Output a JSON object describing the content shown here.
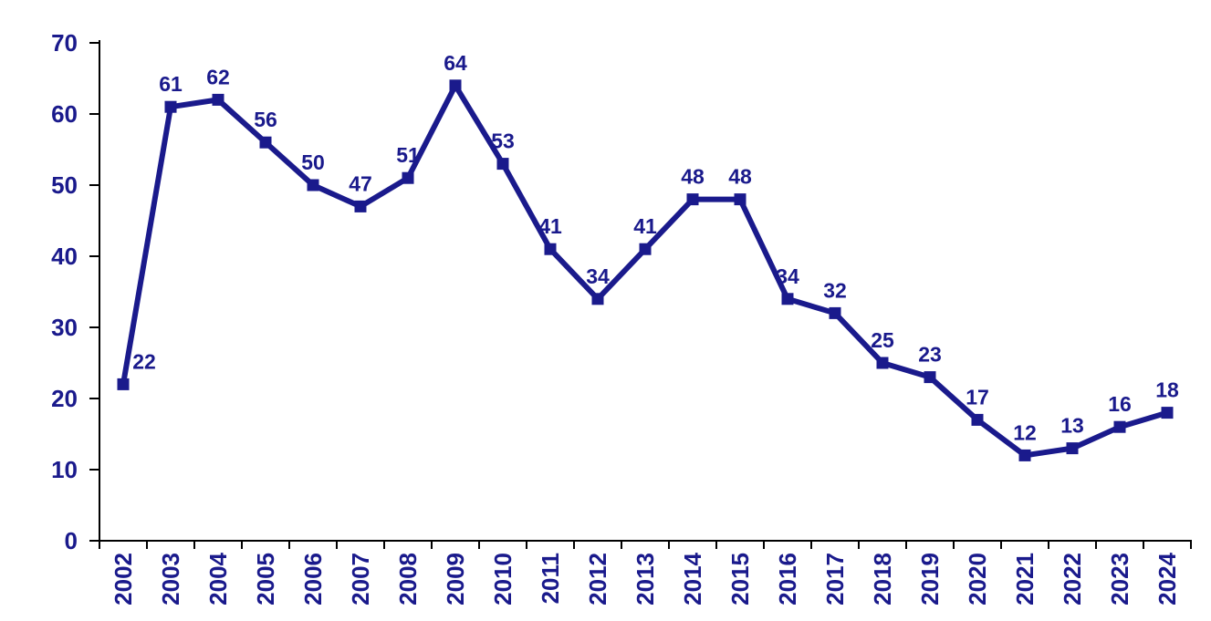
{
  "page": {
    "background_color": "#ffffff"
  },
  "chart_data": {
    "type": "line",
    "title": "",
    "xlabel": "",
    "ylabel": "",
    "categories": [
      "2002",
      "2003",
      "2004",
      "2005",
      "2006",
      "2007",
      "2008",
      "2009",
      "2010",
      "2011",
      "2012",
      "2013",
      "2014",
      "2015",
      "2016",
      "2017",
      "2018",
      "2019",
      "2020",
      "2021",
      "2022",
      "2023",
      "2024"
    ],
    "values": [
      22,
      61,
      62,
      56,
      50,
      47,
      51,
      64,
      53,
      41,
      34,
      41,
      48,
      48,
      34,
      32,
      25,
      23,
      17,
      12,
      13,
      16,
      18
    ],
    "data_labels": [
      "22",
      "61",
      "62",
      "56",
      "50",
      "47",
      "51",
      "64",
      "53",
      "41",
      "34",
      "41",
      "48",
      "48",
      "34",
      "32",
      "25",
      "23",
      "17",
      "12",
      "13",
      "16",
      "18"
    ],
    "ylim": [
      0,
      70
    ],
    "yticks": [
      0,
      10,
      20,
      30,
      40,
      50,
      60,
      70
    ],
    "grid": false,
    "legend": "none",
    "x_tick_label_rotation": -90,
    "marker_shape": "square",
    "line_color": "#1A1A8C",
    "marker_color": "#1A1A8C",
    "data_label_color": "#1A1A8C",
    "tick_label_color": "#1A1A8C",
    "axis_color": "#000000"
  }
}
